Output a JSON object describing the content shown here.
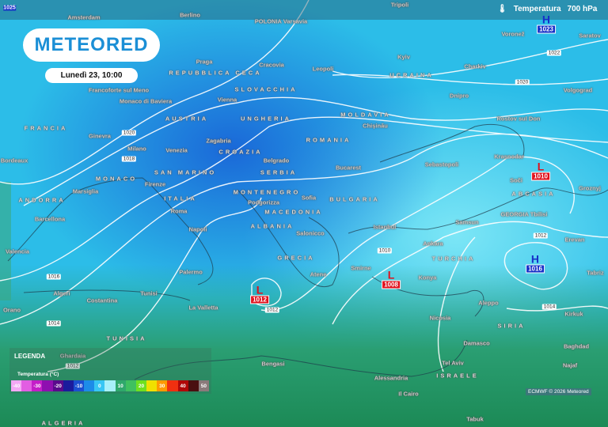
{
  "brand": {
    "logo": "METEORED",
    "datetime": "Lunedì 23, 10:00"
  },
  "variable": {
    "icon": "thermometer-icon",
    "label": "Temperatura",
    "level": "700 hPa"
  },
  "cities": [
    "Berlino",
    "Amsterdam",
    "POLONIA Varsavia",
    "Francoforte sul Meno",
    "Praga",
    "REPUBBLICA CECA",
    "Cracovia",
    "Leopoli",
    "Kyiv",
    "Charkiv",
    "Voronež",
    "Saratov",
    "Volgograd",
    "UCRAINA",
    "Dnipro",
    "MOLDAVIA",
    "Chișinău",
    "Rostov sul Don",
    "Sebastopoli",
    "Krasnodar",
    "Soči",
    "Groznyj",
    "Bucarest",
    "ROMANIA",
    "Monaco di Baviera",
    "AUSTRIA",
    "Vienna",
    "SLOVACCHIA",
    "UNGHERIA",
    "Zagabria",
    "CROAZIA",
    "Belgrado",
    "SERBIA",
    "Ginevra",
    "FRANCIA",
    "Milano",
    "Venezia",
    "MONACO",
    "Marsiglia",
    "SAN MARINO",
    "Firenze",
    "ITALIA",
    "Roma",
    "Napoli",
    "ANDORRA",
    "Barcellona",
    "Bordeaux",
    "Valencia",
    "Palermo",
    "Algeri",
    "Costantina",
    "Orano",
    "Tunisi",
    "La Valletta",
    "MONTENEGRO",
    "Podgorizza",
    "MACEDONIA",
    "ALBANIA",
    "Salonicco",
    "BULGARIA",
    "Sofia",
    "GRECIA",
    "Atene",
    "Istanbul",
    "Ankara",
    "TURCHIA",
    "Smirne",
    "Konya",
    "Samsun",
    "ABCASIA",
    "GEORGIA Tbilisi",
    "Erevan",
    "Tabriz",
    "Aleppo",
    "Nicosia",
    "SIRIA",
    "Kirkuk",
    "Damasco",
    "Tel Aviv",
    "ISRAELE",
    "Baghdad",
    "Najaf",
    "Bengasi",
    "Alessandria",
    "Il Cairo",
    "Tabuk",
    "Ghardaia",
    "ALGERIA",
    "TUNISIA",
    "Tripoli"
  ],
  "pressure_centers": [
    {
      "type": "L",
      "value": "1010"
    },
    {
      "type": "L",
      "value": "1012"
    },
    {
      "type": "L",
      "value": "1008"
    },
    {
      "type": "H",
      "value": "1016"
    },
    {
      "type": "H",
      "value": "1023"
    }
  ],
  "top_left_value": "1025",
  "isobar_labels": [
    "1022",
    "1020",
    "1020",
    "1018",
    "1016",
    "1014",
    "1012",
    "1012",
    "1010",
    "1012",
    "1014"
  ],
  "legend": {
    "title": "LEGENDA",
    "subtitle": "Temperatura (°C)",
    "ticks": [
      "-40",
      "",
      "-30",
      "",
      "-20",
      "",
      "-10",
      "",
      "0",
      "",
      "10",
      "",
      "20",
      "",
      "30",
      "",
      "40",
      "",
      "50"
    ],
    "colors": [
      "#f4a8f4",
      "#e25ee2",
      "#c41ec8",
      "#8f0fb0",
      "#5a0a8c",
      "#1b1b9c",
      "#1b4fd0",
      "#1d8ce8",
      "#38c6f4",
      "#a8f0fa",
      "#2fa86c",
      "#3fc060",
      "#6fe020",
      "#f0e000",
      "#ff9a00",
      "#f03010",
      "#b00808",
      "#4a1010",
      "#8a7a7a"
    ]
  },
  "credit": "ECMWF © 2026 Meteored",
  "colors": {
    "low": "#e0101c",
    "high": "#1630c8",
    "brand": "#1b8fd6"
  }
}
